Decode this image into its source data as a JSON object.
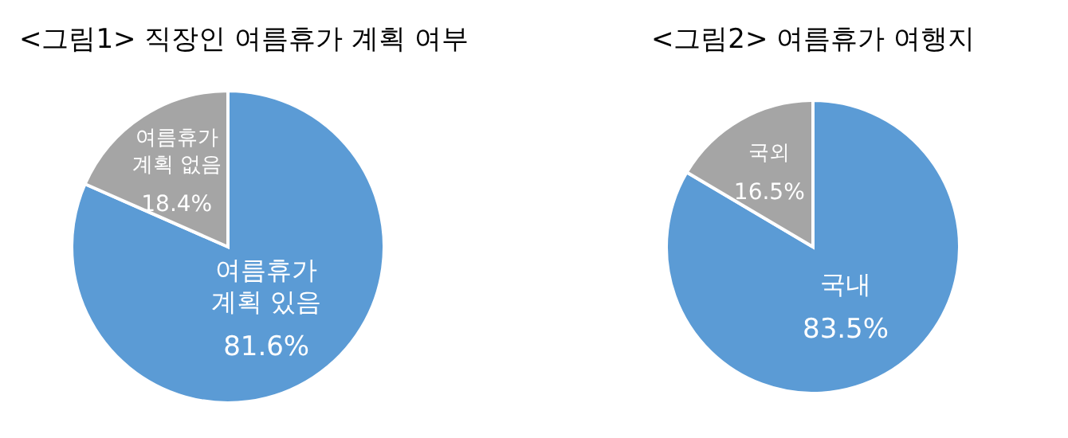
{
  "chart_data": [
    {
      "type": "pie",
      "title": "<그림1> 직장인 여름휴가 계획 여부",
      "categories": [
        "여름휴가 계획 있음",
        "여름휴가 계획 없음"
      ],
      "values": [
        81.6,
        18.4
      ],
      "colors": [
        "#5b9bd5",
        "#a5a5a5"
      ],
      "value_labels": [
        "81.6%",
        "18.4%"
      ]
    },
    {
      "type": "pie",
      "title": "<그림2> 여름휴가 여행지",
      "categories": [
        "국내",
        "국외"
      ],
      "values": [
        83.5,
        16.5
      ],
      "colors": [
        "#5b9bd5",
        "#a5a5a5"
      ],
      "value_labels": [
        "83.5%",
        "16.5%"
      ]
    }
  ]
}
